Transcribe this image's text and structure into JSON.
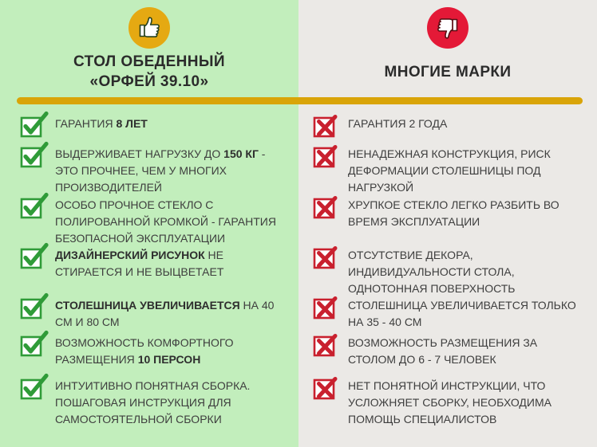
{
  "left": {
    "badge_icon": "thumbs-up",
    "title_line1": "СТОЛ ОБЕДЕННЫЙ",
    "title_line2": "«ОРФЕЙ 39.10»",
    "mark_icon": "green-checkbox-check",
    "items": [
      {
        "segments": [
          {
            "text": "ГАРАНТИЯ ",
            "bold": false
          },
          {
            "text": "8 ЛЕТ",
            "bold": true
          }
        ]
      },
      {
        "segments": [
          {
            "text": "ВЫДЕРЖИВАЕТ НАГРУЗКУ ДО ",
            "bold": false
          },
          {
            "text": "150 КГ",
            "bold": true
          },
          {
            "text": " - ЭТО ПРОЧНЕЕ, ЧЕМ У МНОГИХ ПРОИЗВОДИТЕЛЕЙ",
            "bold": false
          }
        ]
      },
      {
        "segments": [
          {
            "text": "ОСОБО ПРОЧНОЕ СТЕКЛО С ПОЛИРОВАННОЙ КРОМКОЙ - ГАРАНТИЯ БЕЗОПАСНОЙ ЭКСПЛУАТАЦИИ",
            "bold": false
          }
        ]
      },
      {
        "segments": [
          {
            "text": "ДИЗАЙНЕРСКИЙ РИСУНОК",
            "bold": true
          },
          {
            "text": " НЕ СТИРАЕТСЯ И НЕ ВЫЦВЕТАЕТ",
            "bold": false
          }
        ]
      },
      {
        "segments": [
          {
            "text": "СТОЛЕШНИЦА УВЕЛИЧИВАЕТСЯ",
            "bold": true
          },
          {
            "text": " НА 40 СМ И 80 СМ",
            "bold": false
          }
        ]
      },
      {
        "segments": [
          {
            "text": "ВОЗМОЖНОСТЬ КОМФОРТНОГО РАЗМЕЩЕНИЯ ",
            "bold": false
          },
          {
            "text": "10 ПЕРСОН",
            "bold": true
          }
        ]
      },
      {
        "segments": [
          {
            "text": "ИНТУИТИВНО ПОНЯТНАЯ СБОРКА. ПОШАГОВАЯ ИНСТРУКЦИЯ ДЛЯ САМОСТОЯТЕЛЬНОЙ СБОРКИ",
            "bold": false
          }
        ]
      }
    ]
  },
  "right": {
    "badge_icon": "thumbs-down",
    "title": "МНОГИЕ МАРКИ",
    "mark_icon": "red-checkbox-cross",
    "items": [
      {
        "segments": [
          {
            "text": "ГАРАНТИЯ 2 ГОДА",
            "bold": false
          }
        ]
      },
      {
        "segments": [
          {
            "text": "НЕНАДЕЖНАЯ КОНСТРУКЦИЯ, РИСК ДЕФОРМАЦИИ СТОЛЕШНИЦЫ ПОД НАГРУЗКОЙ",
            "bold": false
          }
        ]
      },
      {
        "segments": [
          {
            "text": "ХРУПКОЕ СТЕКЛО ЛЕГКО РАЗБИТЬ ВО ВРЕМЯ ЭКСПЛУАТАЦИИ",
            "bold": false
          }
        ]
      },
      {
        "segments": [
          {
            "text": "ОТСУТСТВИЕ ДЕКОРА, ИНДИВИДУАЛЬНОСТИ СТОЛА, ОДНОТОННАЯ ПОВЕРХНОСТЬ",
            "bold": false
          }
        ]
      },
      {
        "segments": [
          {
            "text": "СТОЛЕШНИЦА УВЕЛИЧИВАЕТСЯ ТОЛЬКО НА 35 - 40 СМ",
            "bold": false
          }
        ]
      },
      {
        "segments": [
          {
            "text": "ВОЗМОЖНОСТЬ РАЗМЕЩЕНИЯ ЗА СТОЛОМ ДО 6 - 7 ЧЕЛОВЕК",
            "bold": false
          }
        ]
      },
      {
        "segments": [
          {
            "text": "НЕТ ПОНЯТНОЙ ИНСТРУКЦИИ, ЧТО УСЛОЖНЯЕТ СБОРКУ, НЕОБХОДИМА ПОМОЩЬ СПЕЦИАЛИСТОВ",
            "bold": false
          }
        ]
      }
    ]
  },
  "colors": {
    "left_background": "#c2eebc",
    "right_background": "#ebe9e6",
    "divider_gold": "#d9a408",
    "check_green": "#2f9b38",
    "cross_red": "#c9202e",
    "thumbs_up_circle": "#e5a912",
    "thumbs_down_circle": "#e41937",
    "text": "#3e3e3e"
  }
}
